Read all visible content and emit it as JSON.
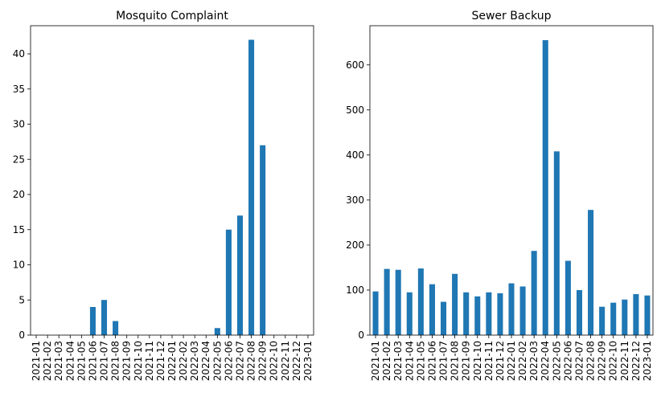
{
  "chart_data": [
    {
      "type": "bar",
      "title": "Mosquito Complaint",
      "categories": [
        "2021-01",
        "2021-02",
        "2021-03",
        "2021-04",
        "2021-05",
        "2021-06",
        "2021-07",
        "2021-08",
        "2021-09",
        "2021-10",
        "2021-11",
        "2021-12",
        "2022-01",
        "2022-02",
        "2022-03",
        "2022-04",
        "2022-05",
        "2022-06",
        "2022-07",
        "2022-08",
        "2022-09",
        "2022-10",
        "2022-11",
        "2022-12",
        "2023-01"
      ],
      "values": [
        0,
        0,
        0,
        0,
        0,
        4,
        5,
        2,
        0,
        0,
        0,
        0,
        0,
        0,
        0,
        0,
        1,
        15,
        17,
        42,
        27,
        0,
        0,
        0,
        0
      ],
      "ylim": [
        0,
        44
      ],
      "yticks": [
        0,
        5,
        10,
        15,
        20,
        25,
        30,
        35,
        40
      ],
      "xlabel": "",
      "ylabel": "",
      "grid": false,
      "color": "#1f77b4"
    },
    {
      "type": "bar",
      "title": "Sewer Backup",
      "categories": [
        "2021-01",
        "2021-02",
        "2021-03",
        "2021-04",
        "2021-05",
        "2021-06",
        "2021-07",
        "2021-08",
        "2021-09",
        "2021-10",
        "2021-11",
        "2021-12",
        "2022-01",
        "2022-02",
        "2022-03",
        "2022-04",
        "2022-05",
        "2022-06",
        "2022-07",
        "2022-08",
        "2022-09",
        "2022-10",
        "2022-11",
        "2022-12",
        "2023-01"
      ],
      "values": [
        97,
        147,
        145,
        95,
        148,
        113,
        74,
        136,
        95,
        86,
        95,
        93,
        115,
        108,
        187,
        655,
        408,
        165,
        100,
        278,
        63,
        72,
        79,
        91,
        88
      ],
      "ylim": [
        0,
        687
      ],
      "yticks": [
        0,
        100,
        200,
        300,
        400,
        500,
        600
      ],
      "xlabel": "",
      "ylabel": "",
      "grid": false,
      "color": "#1f77b4"
    }
  ]
}
